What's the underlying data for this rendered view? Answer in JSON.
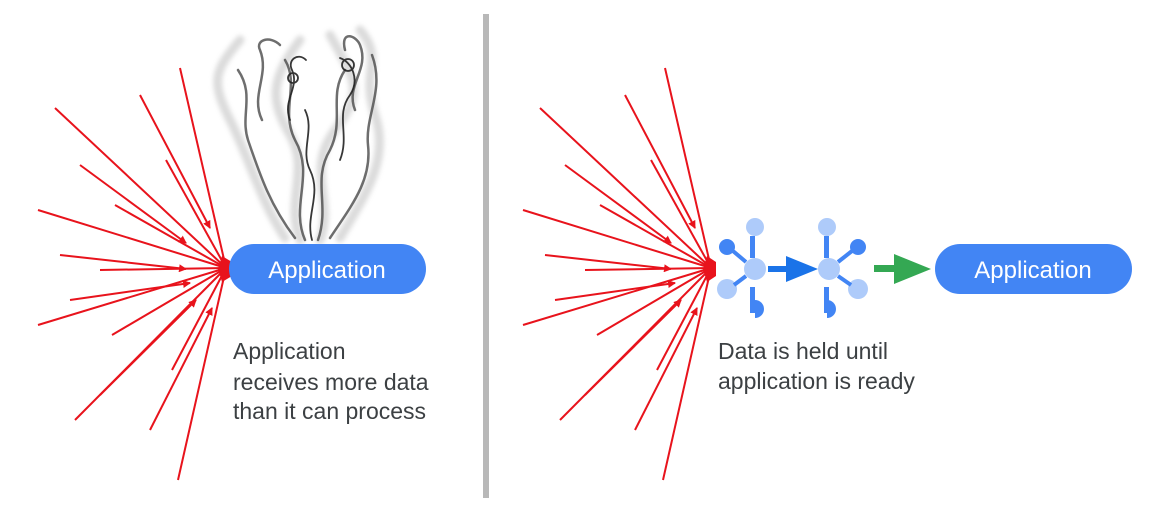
{
  "left_panel": {
    "app_label": "Application",
    "caption_lines": [
      "Application",
      "receives more data",
      "than it can process"
    ]
  },
  "right_panel": {
    "app_label": "Application",
    "caption_lines": [
      "Data is held until",
      "application is ready"
    ]
  },
  "colors": {
    "arrow_red": "#e8131c",
    "app_blue": "#4285f4",
    "queue_blue": "#1a73e8",
    "queue_light": "#aecbfa",
    "flow_green": "#34a853",
    "divider": "#b8b8b8",
    "caption_text": "#3c4043"
  },
  "icons": {
    "overload": "smoke-icon",
    "buffer": "message-queue-icon"
  }
}
